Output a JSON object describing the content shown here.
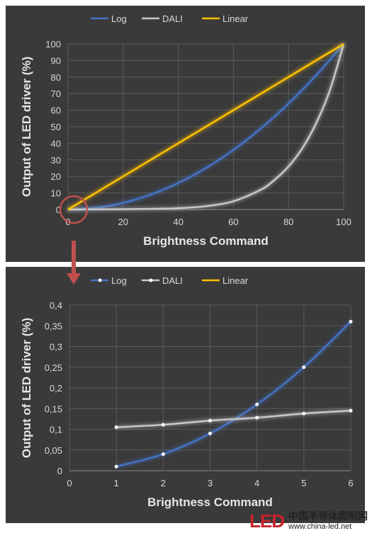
{
  "chart_data": [
    {
      "type": "line",
      "xlabel": "Brightness Command",
      "ylabel": "Output of LED driver (%)",
      "xlim": [
        0,
        100
      ],
      "ylim": [
        0,
        100
      ],
      "x_ticks": [
        "0",
        "20",
        "40",
        "60",
        "80",
        "100"
      ],
      "y_ticks": [
        "0",
        "10",
        "20",
        "30",
        "40",
        "50",
        "60",
        "70",
        "80",
        "90",
        "100"
      ],
      "grid": true,
      "legend": "top",
      "series": [
        {
          "name": "Log",
          "color": "#4472c4",
          "x": [
            0,
            10,
            20,
            30,
            40,
            50,
            60,
            70,
            80,
            90,
            100
          ],
          "y": [
            0,
            1,
            4,
            9,
            16,
            25,
            36,
            49,
            64,
            81,
            100
          ]
        },
        {
          "name": "DALI",
          "color": "#c8c8c8",
          "x": [
            0,
            10,
            20,
            30,
            40,
            50,
            60,
            70,
            75,
            80,
            85,
            90,
            95,
            100
          ],
          "y": [
            0,
            0.1,
            0.2,
            0.4,
            0.8,
            2,
            5,
            12,
            18,
            26,
            37,
            52,
            72,
            100
          ]
        },
        {
          "name": "Linear",
          "color": "#ffc000",
          "x": [
            0,
            100
          ],
          "y": [
            0,
            100
          ]
        }
      ]
    },
    {
      "type": "line",
      "xlabel": "Brightness Command",
      "ylabel": "Output of LED driver (%)",
      "xlim": [
        0,
        6
      ],
      "ylim": [
        0,
        0.4
      ],
      "x_ticks": [
        "0",
        "1",
        "2",
        "3",
        "4",
        "5",
        "6"
      ],
      "y_ticks": [
        "0",
        "0,05",
        "0,1",
        "0,15",
        "0,2",
        "0,25",
        "0,3",
        "0,35",
        "0,4"
      ],
      "grid": true,
      "legend": "top",
      "series": [
        {
          "name": "Log",
          "color": "#4472c4",
          "x": [
            1,
            2,
            3,
            4,
            5,
            6
          ],
          "y": [
            0.01,
            0.04,
            0.09,
            0.16,
            0.25,
            0.36
          ]
        },
        {
          "name": "DALI",
          "color": "#c8c8c8",
          "x": [
            1,
            2,
            3,
            4,
            5,
            6
          ],
          "y": [
            0.105,
            0.111,
            0.121,
            0.128,
            0.138,
            0.145
          ]
        },
        {
          "name": "Linear",
          "color": "#ffc000",
          "x": [],
          "y": []
        }
      ]
    }
  ],
  "watermark": {
    "logo": "LED",
    "cn_text": "中国半导体照明网",
    "url": "www.china-led.net"
  }
}
